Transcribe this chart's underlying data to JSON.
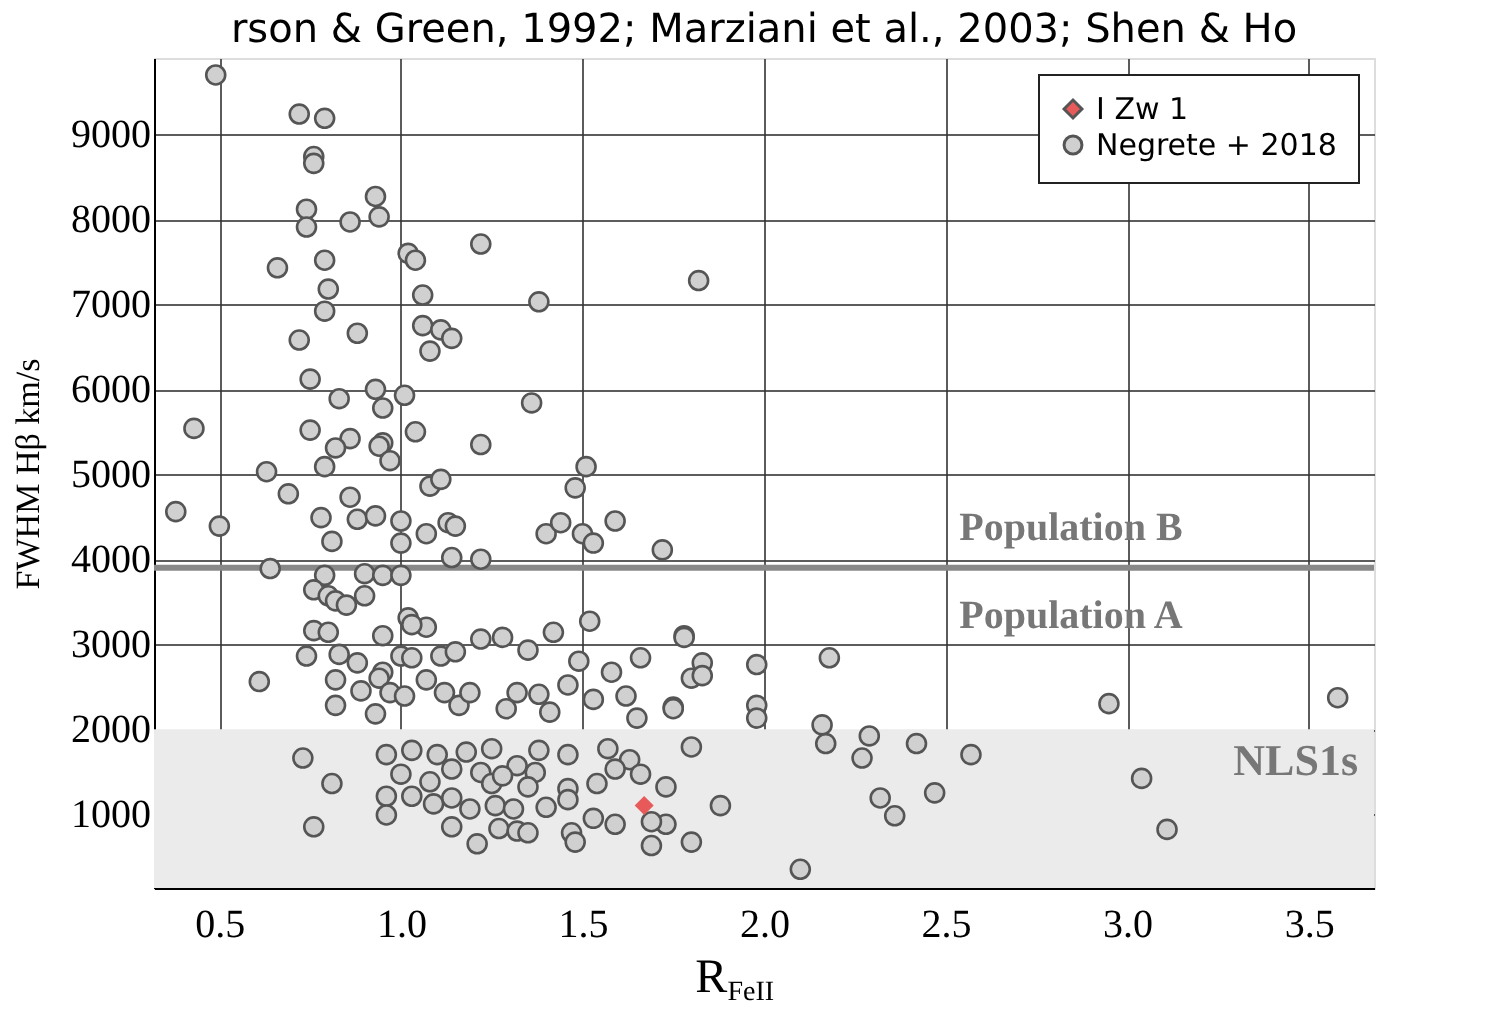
{
  "chart_data": {
    "type": "scatter",
    "title": "rson & Green, 1992; Marziani et al., 2003; Shen & Ho",
    "xlabel": "R$_{FeII}$",
    "ylabel": "FWHM Hβ km/s",
    "xlim": [
      0.32,
      3.68
    ],
    "xticks": [
      0.5,
      {
        "value": 1,
        "label": "1.0"
      },
      1.5,
      {
        "value": 2,
        "label": "2.0"
      },
      2.5,
      {
        "value": 3,
        "label": "3.0"
      },
      3.5
    ],
    "ylim": [
      130,
      9900
    ],
    "yticks": [
      1000,
      2000,
      3000,
      4000,
      5000,
      6000,
      7000,
      8000,
      9000
    ],
    "grid": true,
    "legend": "top right",
    "ref_lines": [
      {
        "axis": "y",
        "value": 3900,
        "color": "#888888"
      }
    ],
    "bands": [
      {
        "axis": "y",
        "from": 130,
        "to": 2000,
        "label": "NLS1s",
        "color": "#ebebeb"
      }
    ],
    "annotations": [
      "Population B",
      "Population A"
    ],
    "series": [
      {
        "name": "I Zw 1",
        "color": "#e85a5a",
        "marker": "diamond",
        "x": [
          1.67
        ],
        "values": [
          1100
        ]
      },
      {
        "name": "Negrete + 2018",
        "color": "#d0d0d0",
        "marker": "circle",
        "x": [
          0.49,
          0.72,
          0.79,
          0.76,
          0.76,
          0.93,
          0.94,
          0.74,
          0.74,
          0.86,
          1.22,
          1.02,
          1.04,
          0.79,
          0.66,
          0.8,
          1.06,
          1.38,
          0.79,
          1.06,
          1.11,
          1.14,
          0.88,
          0.72,
          1.08,
          0.75,
          0.93,
          0.83,
          1.01,
          0.95,
          1.36,
          0.43,
          0.75,
          0.86,
          1.04,
          0.82,
          0.95,
          0.94,
          0.97,
          1.22,
          0.79,
          0.63,
          1.51,
          1.82,
          1.08,
          1.11,
          1.48,
          0.69,
          0.86,
          0.38,
          0.5,
          0.78,
          0.88,
          0.93,
          1.0,
          1.07,
          1.13,
          1.15,
          1.4,
          1.44,
          1.5,
          1.53,
          1.59,
          1.72,
          0.81,
          1.0,
          1.14,
          1.22,
          0.64,
          0.79,
          0.9,
          0.95,
          1.0,
          0.76,
          0.8,
          0.82,
          0.85,
          0.9,
          1.02,
          1.07,
          1.03,
          1.52,
          0.76,
          0.8,
          0.95,
          1.22,
          1.28,
          1.42,
          1.78,
          0.74,
          0.83,
          0.88,
          0.95,
          1.0,
          1.03,
          1.11,
          1.15,
          1.35,
          1.49,
          1.58,
          1.66,
          0.61,
          0.82,
          0.89,
          0.94,
          0.97,
          1.01,
          1.07,
          1.12,
          1.16,
          1.19,
          1.29,
          1.32,
          1.38,
          1.41,
          1.46,
          1.53,
          1.62,
          1.65,
          1.75,
          1.8,
          0.93,
          0.82,
          0.73,
          0.81,
          0.76,
          0.96,
          1.03,
          1.1,
          1.18,
          1.25,
          1.32,
          1.38,
          1.46,
          1.57,
          1.63,
          1.0,
          1.08,
          1.14,
          1.22,
          1.25,
          1.28,
          1.37,
          1.35,
          1.46,
          1.54,
          1.59,
          1.66,
          1.73,
          0.96,
          1.03,
          1.09,
          1.14,
          1.19,
          1.26,
          1.31,
          1.4,
          1.46,
          1.53,
          1.59,
          0.96,
          1.14,
          1.21,
          1.27,
          1.32,
          1.35,
          1.47,
          1.48,
          1.69,
          1.73,
          1.69,
          1.8,
          1.8,
          1.78,
          1.83,
          1.83,
          1.98,
          2.18,
          1.75,
          1.98,
          1.98,
          2.95,
          3.58,
          1.88,
          2.16,
          2.17,
          2.29,
          2.27,
          2.42,
          2.57,
          2.32,
          2.36,
          2.47,
          3.04,
          3.11,
          2.1
        ],
        "values": [
          9700,
          9240,
          9190,
          8740,
          8660,
          8270,
          8030,
          8120,
          7910,
          7970,
          7710,
          7600,
          7520,
          7520,
          7430,
          7180,
          7110,
          7030,
          6920,
          6750,
          6700,
          6600,
          6660,
          6580,
          6450,
          6120,
          6000,
          5890,
          5930,
          5780,
          5840,
          5540,
          5520,
          5420,
          5500,
          5310,
          5370,
          5330,
          5160,
          5350,
          5090,
          5030,
          5090,
          7280,
          4860,
          4940,
          4840,
          4770,
          4730,
          4560,
          4390,
          4490,
          4470,
          4510,
          4450,
          4300,
          4430,
          4390,
          4300,
          4430,
          4300,
          4190,
          4450,
          4110,
          4210,
          4190,
          4020,
          4000,
          3890,
          3810,
          3830,
          3810,
          3810,
          3640,
          3570,
          3510,
          3460,
          3570,
          3310,
          3200,
          3230,
          3270,
          3160,
          3140,
          3100,
          3060,
          3080,
          3140,
          3100,
          2860,
          2880,
          2780,
          2670,
          2860,
          2840,
          2860,
          2910,
          2930,
          2800,
          2670,
          2840,
          2560,
          2580,
          2450,
          2600,
          2430,
          2390,
          2580,
          2430,
          2280,
          2430,
          2240,
          2430,
          2410,
          2200,
          2520,
          2350,
          2390,
          2130,
          2260,
          2600,
          2180,
          2280,
          1660,
          1360,
          850,
          1700,
          1750,
          1700,
          1730,
          1770,
          1570,
          1750,
          1700,
          1770,
          1640,
          1470,
          1380,
          1530,
          1490,
          1360,
          1450,
          1490,
          1320,
          1300,
          1360,
          1530,
          1470,
          1320,
          1210,
          1210,
          1120,
          1190,
          1060,
          1100,
          1060,
          1080,
          1170,
          950,
          880,
          990,
          850,
          650,
          830,
          800,
          780,
          780,
          670,
          630,
          880,
          910,
          670,
          1790,
          3080,
          2780,
          2630,
          2760,
          2840,
          2240,
          2280,
          2130,
          2300,
          2370,
          1100,
          2050,
          1830,
          1920,
          1660,
          1830,
          1700,
          1190,
          980,
          1250,
          1420,
          820,
          350
        ]
      }
    ]
  }
}
